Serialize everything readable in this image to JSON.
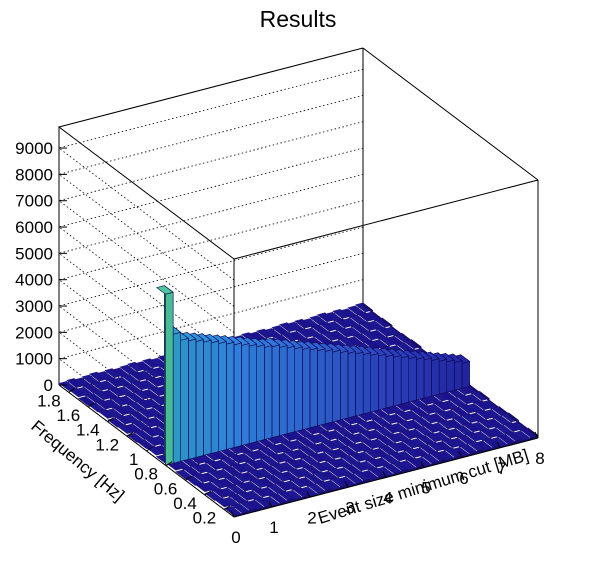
{
  "chart_data": {
    "type": "lego3d",
    "title": "Results",
    "xlabel": "Event size minimum cut [MB]",
    "ylabel": "Frequency [Hz]",
    "zlabel": "",
    "xlim": [
      0,
      8
    ],
    "ylim": [
      0.1,
      1.9
    ],
    "zlim": [
      0,
      9800
    ],
    "x_ticks": [
      "0",
      "1",
      "2",
      "3",
      "4",
      "5",
      "6",
      "7",
      "8"
    ],
    "y_ticks": [
      "0.2",
      "0.4",
      "0.6",
      "0.8",
      "1",
      "1.2",
      "1.4",
      "1.6",
      "1.8"
    ],
    "z_ticks": [
      "0",
      "1000",
      "2000",
      "3000",
      "4000",
      "5000",
      "6000",
      "7000",
      "8000",
      "9000"
    ],
    "grid": true,
    "colormap": [
      "#1a0d8a",
      "#2a3fb8",
      "#2f7fd9",
      "#29b3b0",
      "#8fd15c",
      "#f7e82a"
    ],
    "peak_row": {
      "frequency_hz": 0.85,
      "x": [
        0.1,
        0.3,
        0.5,
        0.7,
        0.9,
        1.1,
        1.3,
        1.5,
        1.7,
        1.9,
        2.1,
        2.3,
        2.5,
        2.7,
        2.9,
        3.1,
        3.3,
        3.5,
        3.7,
        3.9,
        4.1,
        4.3,
        4.5,
        4.7,
        4.9,
        5.1,
        5.3,
        5.5,
        5.7,
        5.9,
        6.1,
        6.3,
        6.5,
        6.7,
        6.9,
        7.1,
        7.3,
        7.5,
        7.7,
        7.9
      ],
      "values": [
        6500,
        4900,
        4600,
        4500,
        4400,
        4300,
        4200,
        4100,
        4000,
        3900,
        3800,
        3700,
        3600,
        3500,
        3450,
        3350,
        3250,
        3150,
        3050,
        2950,
        2850,
        2750,
        2650,
        2550,
        2450,
        2350,
        2250,
        2150,
        2050,
        1950,
        1850,
        1750,
        1650,
        1550,
        1450,
        1350,
        1250,
        1150,
        1050,
        950
      ]
    },
    "background_level": 120
  }
}
